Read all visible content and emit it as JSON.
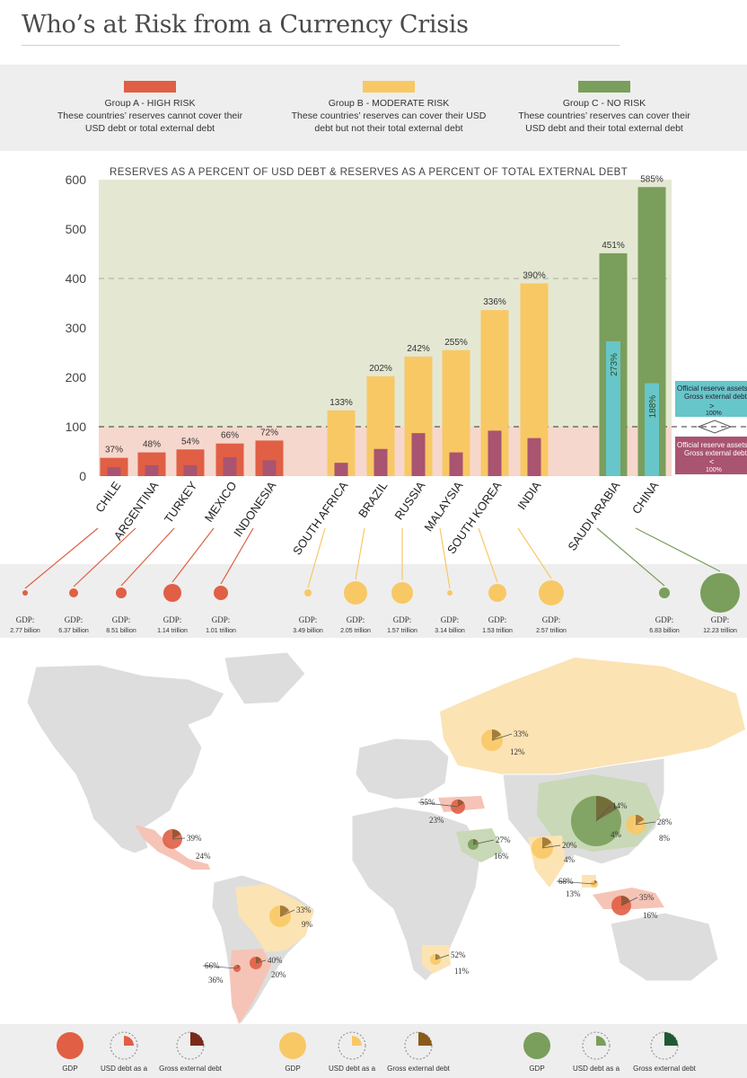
{
  "title": "Who’s at Risk from a Currency Crisis",
  "colors": {
    "high": "#e05f45",
    "moderate": "#f8c865",
    "none": "#7a9e5b",
    "usd_bar": "#a95470",
    "teal": "#67c6c9",
    "bg_green": "#e4e8d3",
    "bg_pink": "#f6d7cd"
  },
  "legend": [
    {
      "name": "Group A - HIGH RISK",
      "line1": "These countries’ reserves cannot cover their",
      "line2": "USD debt or total external debt",
      "color": "#e05f45"
    },
    {
      "name": "Group B - MODERATE RISK",
      "line1": "These countries’ reserves can cover their USD",
      "line2": "debt but not their total external debt",
      "color": "#f8c865"
    },
    {
      "name": "Group C - NO RISK",
      "line1": "These countries’ reserves can cover their",
      "line2": "USD debt and their total external debt",
      "color": "#7a9e5b"
    }
  ],
  "chart_data": {
    "type": "bar",
    "title": "RESERVES AS A PERCENT OF USD DEBT & RESERVES AS A PERCENT OF TOTAL EXTERNAL DEBT",
    "ylim": [
      0,
      600
    ],
    "yticks": [
      0,
      100,
      200,
      300,
      400,
      500,
      600
    ],
    "grid": "dashed at 100 and 400",
    "categories": [
      "CHILE",
      "ARGENTINA",
      "TURKEY",
      "MEXICO",
      "INDONESIA",
      "SOUTH AFRICA",
      "BRAZIL",
      "RUSSIA",
      "MALAYSIA",
      "SOUTH KOREA",
      "INDIA",
      "SAUDI ARABIA",
      "CHINA"
    ],
    "groups": [
      "high",
      "high",
      "high",
      "high",
      "high",
      "moderate",
      "moderate",
      "moderate",
      "moderate",
      "moderate",
      "moderate",
      "none",
      "none"
    ],
    "series": [
      {
        "values": [
          37,
          48,
          54,
          66,
          72,
          133,
          202,
          242,
          255,
          336,
          390,
          451,
          585
        ]
      },
      {
        "values": [
          18,
          22,
          22,
          38,
          32,
          27,
          55,
          87,
          48,
          92,
          77,
          273,
          188
        ]
      }
    ],
    "value_labels": [
      "37%",
      "48%",
      "54%",
      "66%",
      "72%",
      "133%",
      "202%",
      "242%",
      "255%",
      "336%",
      "390%",
      "451%",
      "585%"
    ],
    "inner_labels": {
      "SAUDI ARABIA": "273%",
      "CHINA": "188%"
    },
    "gdp_labels": [
      {
        "label": "GDP:",
        "value": "2.77 billion",
        "r": 3
      },
      {
        "label": "GDP:",
        "value": "6.37 billion",
        "r": 5
      },
      {
        "label": "GDP:",
        "value": "8.51 billion",
        "r": 6
      },
      {
        "label": "GDP:",
        "value": "1.14 trillion",
        "r": 10
      },
      {
        "label": "GDP:",
        "value": "1.01 trillion",
        "r": 8
      },
      {
        "label": "GDP:",
        "value": "3.49 billion",
        "r": 4
      },
      {
        "label": "GDP:",
        "value": "2.05 trillion",
        "r": 13
      },
      {
        "label": "GDP:",
        "value": "1.57 trillion",
        "r": 12
      },
      {
        "label": "GDP:",
        "value": "3.14 billion",
        "r": 3
      },
      {
        "label": "GDP:",
        "value": "1.53 trillion",
        "r": 10
      },
      {
        "label": "GDP:",
        "value": "2.57 trillion",
        "r": 14
      },
      {
        "label": "GDP:",
        "value": "6.83 billion",
        "r": 6
      },
      {
        "label": "GDP:",
        "value": "12.23 trillion",
        "r": 22
      }
    ],
    "side_legend": [
      {
        "line1": "Official reserve assets",
        "line2": "Gross external debt",
        "sym": ">",
        "pct": "100%"
      },
      {
        "line1": "Official reserve assets",
        "line2": "Gross external debt",
        "sym": "<",
        "pct": "100%"
      }
    ]
  },
  "map_labels": [
    {
      "a": "39%",
      "b": "24%"
    },
    {
      "a": "33%",
      "b": "9%"
    },
    {
      "a": "66%",
      "b": "36%"
    },
    {
      "a": "40%",
      "b": "20%"
    },
    {
      "a": "55%",
      "b": "23%"
    },
    {
      "a": "27%",
      "b": "16%"
    },
    {
      "a": "52%",
      "b": "11%"
    },
    {
      "a": "33%",
      "b": "12%"
    },
    {
      "a": "20%",
      "b": "4%"
    },
    {
      "a": "14%",
      "b": "4%"
    },
    {
      "a": "28%",
      "b": "8%"
    },
    {
      "a": "68%",
      "b": "13%"
    },
    {
      "a": "35%",
      "b": "16%"
    }
  ],
  "bottom_legend": [
    {
      "label": "GDP"
    },
    {
      "label": "USD debt as a"
    },
    {
      "label": "Gross external debt"
    },
    {
      "label": "GDP"
    },
    {
      "label": "USD debt as a"
    },
    {
      "label": "Gross external debt"
    },
    {
      "label": "GDP"
    },
    {
      "label": "USD debt as a"
    },
    {
      "label": "Gross external debt"
    }
  ]
}
